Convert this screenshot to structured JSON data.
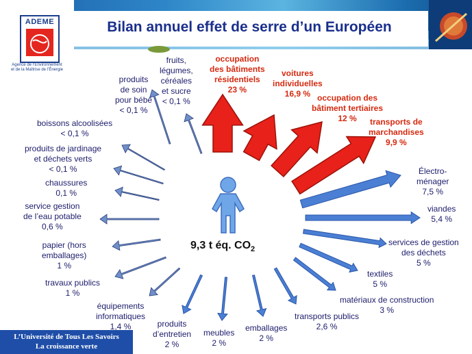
{
  "header": {
    "title": "Bilan annuel effet de serre d’un Européen",
    "logo_name": "ADEME",
    "logo_subtitle_1": "Agence de l’Environnement",
    "logo_subtitle_2": "et de la Maîtrise de l’Énergie"
  },
  "center": {
    "total": "9,3 t éq. CO",
    "total_sub": "2"
  },
  "categories": [
    {
      "label_lines": [
        "produits",
        "de soin",
        "pour bébé",
        "< 0,1 %"
      ],
      "highlight": false
    },
    {
      "label_lines": [
        "fruits,",
        "légumes,",
        "céréales",
        "et sucre",
        "< 0,1 %"
      ],
      "highlight": false
    },
    {
      "label_lines": [
        "occupation",
        "des bâtiments",
        "résidentiels",
        "23 %"
      ],
      "highlight": true
    },
    {
      "label_lines": [
        "voitures",
        "individuelles",
        "16,9 %"
      ],
      "highlight": true
    },
    {
      "label_lines": [
        "occupation des",
        "bâtiment tertiaires",
        "12 %"
      ],
      "highlight": true
    },
    {
      "label_lines": [
        "transports de",
        "marchandises",
        "9,9 %"
      ],
      "highlight": true
    },
    {
      "label_lines": [
        "Électro-",
        "ménager",
        "7,5 %"
      ],
      "highlight": false
    },
    {
      "label_lines": [
        "viandes",
        "5,4 %"
      ],
      "highlight": false
    },
    {
      "label_lines": [
        "services de gestion",
        "des déchets",
        "5 %"
      ],
      "highlight": false
    },
    {
      "label_lines": [
        "textiles",
        "5 %"
      ],
      "highlight": false
    },
    {
      "label_lines": [
        "matériaux de construction",
        "3 %"
      ],
      "highlight": false
    },
    {
      "label_lines": [
        "transports publics",
        "2,6 %"
      ],
      "highlight": false
    },
    {
      "label_lines": [
        "emballages",
        "2 %"
      ],
      "highlight": false
    },
    {
      "label_lines": [
        "meubles",
        "2 %"
      ],
      "highlight": false
    },
    {
      "label_lines": [
        "produits",
        "d’entretien",
        "2 %"
      ],
      "highlight": false
    },
    {
      "label_lines": [
        "équipements",
        "informatiques",
        "1,4 %"
      ],
      "highlight": false
    },
    {
      "label_lines": [
        "travaux publics",
        "1 %"
      ],
      "highlight": false
    },
    {
      "label_lines": [
        "papier (hors",
        "emballages)",
        "1 %"
      ],
      "highlight": false
    },
    {
      "label_lines": [
        "service gestion",
        "de l’eau potable",
        "0,6 %"
      ],
      "highlight": false
    },
    {
      "label_lines": [
        "chaussures",
        "0,1 %"
      ],
      "highlight": false
    },
    {
      "label_lines": [
        "produits de jardinage",
        "et déchets verts",
        "< 0,1 %"
      ],
      "highlight": false
    },
    {
      "label_lines": [
        "boissons alcoolisées",
        "< 0,1 %"
      ],
      "highlight": false
    }
  ],
  "footer": {
    "line1": "L’Université de Tous Les Savoirs",
    "line2": "La croissance verte"
  },
  "colors": {
    "highlight_arrow": "#e8211a",
    "blue_arrow": "#4a7fd4",
    "title": "#1a2f8c",
    "footer_bg": "#1f4ea8"
  }
}
